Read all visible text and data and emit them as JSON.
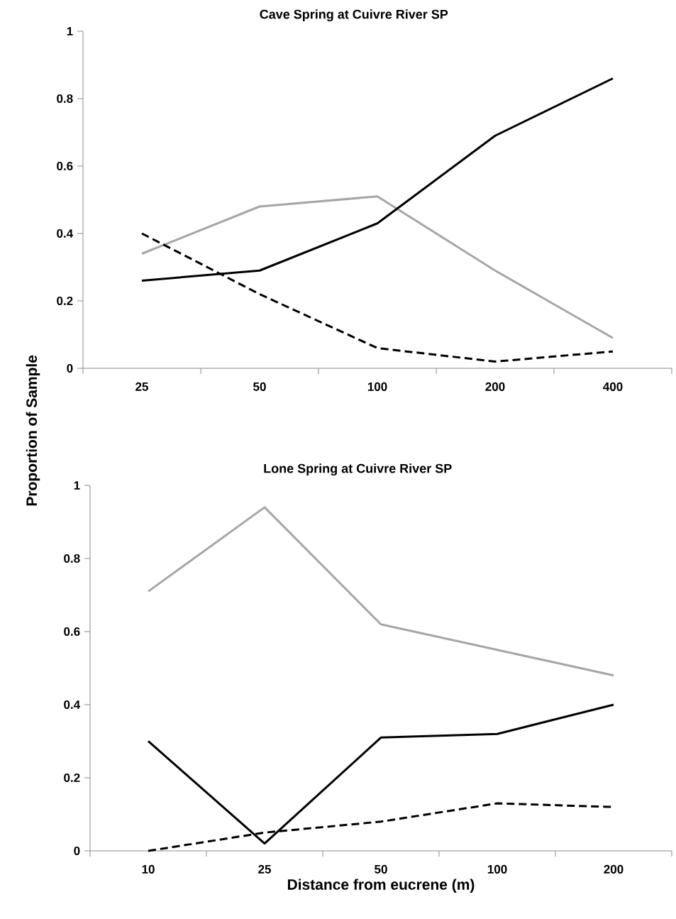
{
  "chart_data": [
    {
      "type": "line",
      "title": "Cave Spring at Cuivre River SP",
      "ylabel": "Proportion of Sample",
      "categories": [
        "25",
        "50",
        "100",
        "200",
        "400"
      ],
      "ylim": [
        0,
        1
      ],
      "yticks": [
        0,
        0.2,
        0.4,
        0.6,
        0.8,
        1
      ],
      "series": [
        {
          "color": "#a6a6a6",
          "line_style": "solid",
          "values": [
            0.34,
            0.48,
            0.51,
            0.29,
            0.09
          ]
        },
        {
          "color": "#000000",
          "line_style": "solid",
          "values": [
            0.26,
            0.29,
            0.43,
            0.69,
            0.86
          ]
        },
        {
          "color": "#000000",
          "line_style": "dashed",
          "values": [
            0.4,
            0.22,
            0.06,
            0.02,
            0.05
          ]
        }
      ]
    },
    {
      "type": "line",
      "title": "Lone Spring at Cuivre River SP",
      "xlabel": "Distance from eucrene (m)",
      "categories": [
        "10",
        "25",
        "50",
        "100",
        "200"
      ],
      "ylim": [
        0,
        1
      ],
      "yticks": [
        0,
        0.2,
        0.4,
        0.6,
        0.8,
        1
      ],
      "series": [
        {
          "color": "#a6a6a6",
          "line_style": "solid",
          "values": [
            0.71,
            0.94,
            0.62,
            0.55,
            0.48
          ]
        },
        {
          "color": "#000000",
          "line_style": "solid",
          "values": [
            0.3,
            0.02,
            0.31,
            0.32,
            0.4
          ]
        },
        {
          "color": "#000000",
          "line_style": "dashed",
          "values": [
            0.0,
            0.05,
            0.08,
            0.13,
            0.12
          ]
        }
      ]
    }
  ]
}
